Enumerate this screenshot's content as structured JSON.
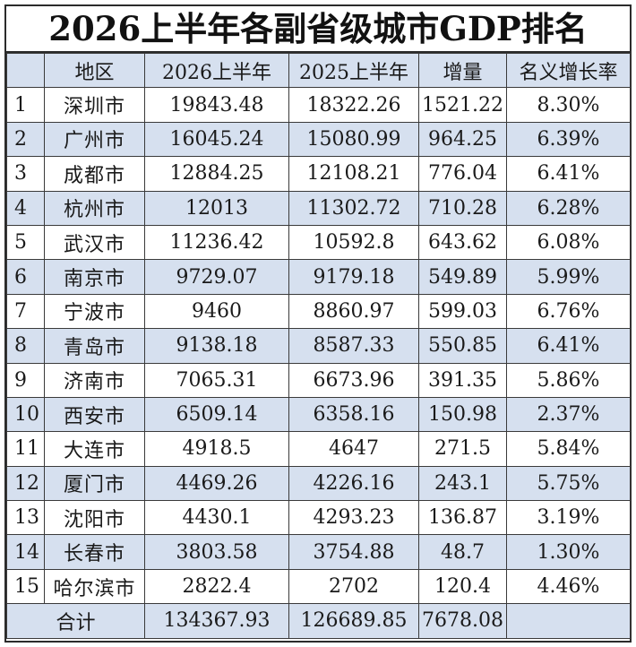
{
  "title": "2026上半年各副省级城市GDP排名",
  "headers": {
    "rank": "",
    "city": "地区",
    "gdp_2026h1": "2026上半年",
    "gdp_2025h1": "2025上半年",
    "increase": "增量",
    "growth_rate": "名义增长率"
  },
  "rows": [
    {
      "rank": "1",
      "city": "深圳市",
      "gdp_2026h1": "19843.48",
      "gdp_2025h1": "18322.26",
      "increase": "1521.22",
      "growth_rate": "8.30%"
    },
    {
      "rank": "2",
      "city": "广州市",
      "gdp_2026h1": "16045.24",
      "gdp_2025h1": "15080.99",
      "increase": "964.25",
      "growth_rate": "6.39%"
    },
    {
      "rank": "3",
      "city": "成都市",
      "gdp_2026h1": "12884.25",
      "gdp_2025h1": "12108.21",
      "increase": "776.04",
      "growth_rate": "6.41%"
    },
    {
      "rank": "4",
      "city": "杭州市",
      "gdp_2026h1": "12013",
      "gdp_2025h1": "11302.72",
      "increase": "710.28",
      "growth_rate": "6.28%"
    },
    {
      "rank": "5",
      "city": "武汉市",
      "gdp_2026h1": "11236.42",
      "gdp_2025h1": "10592.8",
      "increase": "643.62",
      "growth_rate": "6.08%"
    },
    {
      "rank": "6",
      "city": "南京市",
      "gdp_2026h1": "9729.07",
      "gdp_2025h1": "9179.18",
      "increase": "549.89",
      "growth_rate": "5.99%"
    },
    {
      "rank": "7",
      "city": "宁波市",
      "gdp_2026h1": "9460",
      "gdp_2025h1": "8860.97",
      "increase": "599.03",
      "growth_rate": "6.76%"
    },
    {
      "rank": "8",
      "city": "青岛市",
      "gdp_2026h1": "9138.18",
      "gdp_2025h1": "8587.33",
      "increase": "550.85",
      "growth_rate": "6.41%"
    },
    {
      "rank": "9",
      "city": "济南市",
      "gdp_2026h1": "7065.31",
      "gdp_2025h1": "6673.96",
      "increase": "391.35",
      "growth_rate": "5.86%"
    },
    {
      "rank": "10",
      "city": "西安市",
      "gdp_2026h1": "6509.14",
      "gdp_2025h1": "6358.16",
      "increase": "150.98",
      "growth_rate": "2.37%"
    },
    {
      "rank": "11",
      "city": "大连市",
      "gdp_2026h1": "4918.5",
      "gdp_2025h1": "4647",
      "increase": "271.5",
      "growth_rate": "5.84%"
    },
    {
      "rank": "12",
      "city": "厦门市",
      "gdp_2026h1": "4469.26",
      "gdp_2025h1": "4226.16",
      "increase": "243.1",
      "growth_rate": "5.75%"
    },
    {
      "rank": "13",
      "city": "沈阳市",
      "gdp_2026h1": "4430.1",
      "gdp_2025h1": "4293.23",
      "increase": "136.87",
      "growth_rate": "3.19%"
    },
    {
      "rank": "14",
      "city": "长春市",
      "gdp_2026h1": "3803.58",
      "gdp_2025h1": "3754.88",
      "increase": "48.7",
      "growth_rate": "1.30%"
    },
    {
      "rank": "15",
      "city": "哈尔滨市",
      "gdp_2026h1": "2822.4",
      "gdp_2025h1": "2702",
      "increase": "120.4",
      "growth_rate": "4.46%"
    }
  ],
  "total": {
    "label": "合计",
    "gdp_2026h1": "134367.93",
    "gdp_2025h1": "126689.85",
    "increase": "7678.08",
    "growth_rate": ""
  },
  "colors": {
    "band": "#d6e0ef",
    "border": "#3a3a3a"
  }
}
